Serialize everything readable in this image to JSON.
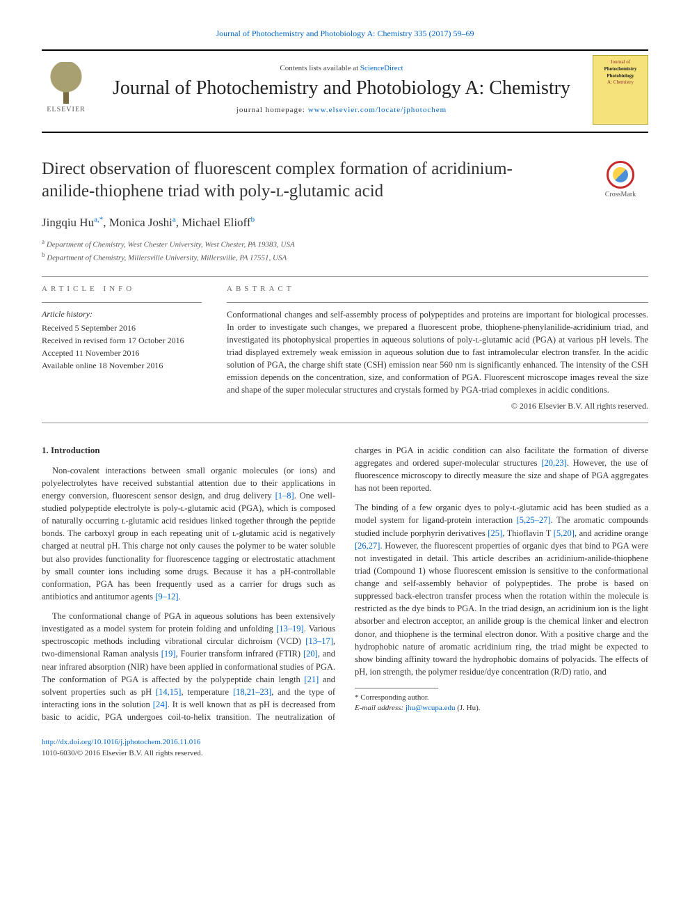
{
  "page_header": {
    "citation": "Journal of Photochemistry and Photobiology A: Chemistry 335 (2017) 59–69",
    "link_color": "#0066cc"
  },
  "masthead": {
    "contents_prefix": "Contents lists available at ",
    "contents_link": "ScienceDirect",
    "journal_title": "Journal of Photochemistry and Photobiology A: Chemistry",
    "homepage_prefix": "journal homepage: ",
    "homepage_url": "www.elsevier.com/locate/jphotochem",
    "publisher_logo_label": "ELSEVIER",
    "cover_lines": [
      "Journal of",
      "Photochemistry",
      "Photobiology",
      "A: Chemistry"
    ]
  },
  "article": {
    "title": "Direct observation of fluorescent complex formation of acridinium-anilide-thiophene triad with poly-ʟ-glutamic acid",
    "crossmark_label": "CrossMark",
    "authors_html": "Jingqiu Hu<sup>a,*</sup>, Monica Joshi<sup>a</sup>, Michael Elioff<sup>b</sup>",
    "affiliations": [
      {
        "key": "a",
        "text": "Department of Chemistry, West Chester University, West Chester, PA 19383, USA"
      },
      {
        "key": "b",
        "text": "Department of Chemistry, Millersville University, Millersville, PA 17551, USA"
      }
    ]
  },
  "info": {
    "label": "ARTICLE INFO",
    "history_head": "Article history:",
    "history": [
      "Received 5 September 2016",
      "Received in revised form 17 October 2016",
      "Accepted 11 November 2016",
      "Available online 18 November 2016"
    ]
  },
  "abstract": {
    "label": "ABSTRACT",
    "text": "Conformational changes and self-assembly process of polypeptides and proteins are important for biological processes. In order to investigate such changes, we prepared a fluorescent probe, thiophene-phenylanilide-acridinium triad, and investigated its photophysical properties in aqueous solutions of poly-ʟ-glutamic acid (PGA) at various pH levels. The triad displayed extremely weak emission in aqueous solution due to fast intramolecular electron transfer. In the acidic solution of PGA, the charge shift state (CSH) emission near 560 nm is significantly enhanced. The intensity of the CSH emission depends on the concentration, size, and conformation of PGA. Fluorescent microscope images reveal the size and shape of the super molecular structures and crystals formed by PGA-triad complexes in acidic conditions.",
    "copyright": "© 2016 Elsevier B.V. All rights reserved."
  },
  "body": {
    "heading": "1. Introduction",
    "paragraphs": [
      "Non-covalent interactions between small organic molecules (or ions) and polyelectrolytes have received substantial attention due to their applications in energy conversion, fluorescent sensor design, and drug delivery [1–8]. One well-studied polypeptide electrolyte is poly-ʟ-glutamic acid (PGA), which is composed of naturally occurring ʟ-glutamic acid residues linked together through the peptide bonds. The carboxyl group in each repeating unit of ʟ-glutamic acid is negatively charged at neutral pH. This charge not only causes the polymer to be water soluble but also provides functionality for fluorescence tagging or electrostatic attachment by small counter ions including some drugs. Because it has a pH-controllable conformation, PGA has been frequently used as a carrier for drugs such as antibiotics and antitumor agents [9–12].",
      "The conformational change of PGA in aqueous solutions has been extensively investigated as a model system for protein folding and unfolding [13–19]. Various spectroscopic methods including vibrational circular dichroism (VCD) [13–17], two-dimensional Raman analysis [19], Fourier transform infrared (FTIR) [20], and near infrared absorption (NIR) have been applied in conformational studies of PGA. The conformation of PGA is affected by the polypeptide chain length [21] and solvent properties such as pH [14,15], temperature [18,21–23], and the type of interacting ions in the solution [24]. It is well known that as pH is decreased from basic to acidic, PGA undergoes coil-to-helix transition. The neutralization of charges in PGA in acidic condition can also facilitate the formation of diverse aggregates and ordered super-molecular structures [20,23]. However, the use of fluorescence microscopy to directly measure the size and shape of PGA aggregates has not been reported.",
      "The binding of a few organic dyes to poly-ʟ-glutamic acid has been studied as a model system for ligand-protein interaction [5,25–27]. The aromatic compounds studied include porphyrin derivatives [25], Thioflavin T [5,20], and acridine orange [26,27]. However, the fluorescent properties of organic dyes that bind to PGA were not investigated in detail. This article describes an acridinium-anilide-thiophene triad (Compound 1) whose fluorescent emission is sensitive to the conformational change and self-assembly behavior of polypeptides. The probe is based on suppressed back-electron transfer process when the rotation within the molecule is restricted as the dye binds to PGA. In the triad design, an acridinium ion is the light absorber and electron acceptor, an anilide group is the chemical linker and electron donor, and thiophene is the terminal electron donor. With a positive charge and the hydrophobic nature of aromatic acridinium ring, the triad might be expected to show binding affinity toward the hydrophobic domains of polyacids. The effects of pH, ion strength, the polymer residue/dye concentration (R/D) ratio, and"
    ],
    "ref_spans": {
      "p0": [
        "[1–8]",
        "[9–12]"
      ],
      "p1": [
        "[13–19]",
        "[13–17]",
        "[19]",
        "[20]",
        "[21]",
        "[14,15]",
        "[18,21–23]",
        "[24]",
        "[20,23]"
      ],
      "p2": [
        "[5,25–27]",
        "[25]",
        "[5,20]",
        "[26,27]"
      ]
    }
  },
  "footnote": {
    "corr": "* Corresponding author.",
    "email_label": "E-mail address: ",
    "email": "jhu@wcupa.edu",
    "email_suffix": " (J. Hu)."
  },
  "doi": {
    "url": "http://dx.doi.org/10.1016/j.jphotochem.2016.11.016",
    "issn_line": "1010-6030/© 2016 Elsevier B.V. All rights reserved."
  },
  "colors": {
    "text": "#333333",
    "link": "#0066cc",
    "rule": "#888888",
    "crossmark_ring": "#c82828",
    "crossmark_yellow": "#ffd24a",
    "crossmark_blue": "#4a90d9",
    "cover_bg": "#f6e27a"
  }
}
